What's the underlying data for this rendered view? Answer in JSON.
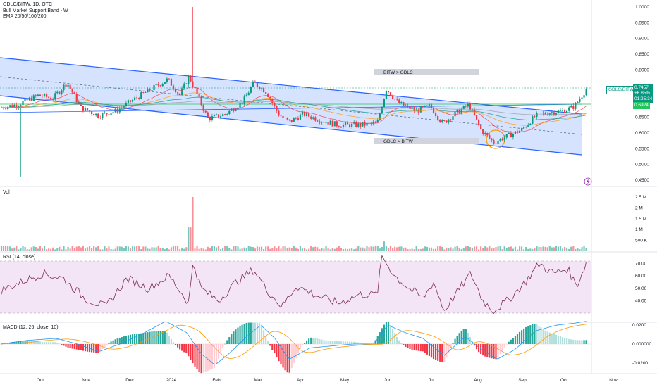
{
  "header": {
    "symbol": "GDLC/BITW, 1D, OTC",
    "indicator_1": "Bull Market Support Band - W",
    "indicator_2": "EMA 20/50/100/200"
  },
  "colors": {
    "up": "#089981",
    "down": "#f23645",
    "channel_fill": "#bfd4ff",
    "channel_line": "#2962ff",
    "rsi_line": "#7e2b59",
    "rsi_fill": "#f3e5f5",
    "macd_line": "#2196f3",
    "signal_line": "#ff9800"
  },
  "price_axis": {
    "ticks": [
      "1.0000",
      "0.9500",
      "0.9000",
      "0.8500",
      "0.8000",
      "0.7500",
      "0.7000",
      "0.6500",
      "0.6000",
      "0.5500",
      "0.5000",
      "0.4500"
    ]
  },
  "volume_axis": {
    "ticks": [
      "2.5 M",
      "2 M",
      "1.5 M",
      "1 M",
      "500 K"
    ]
  },
  "rsi_axis": {
    "ticks": [
      "70.00",
      "60.00",
      "50.00",
      "40.00"
    ]
  },
  "macd_axis": {
    "ticks": [
      "0.0200",
      "0.000000",
      "-0.0200"
    ]
  },
  "time_axis": {
    "labels": [
      "Oct",
      "Nov",
      "Dec",
      "2024",
      "Feb",
      "Mar",
      "Apr",
      "May",
      "Jun",
      "Jul",
      "Aug",
      "Sep",
      "Oct",
      "Nov"
    ]
  },
  "panes": {
    "volume": "Vol",
    "rsi": "RSI (14, close)",
    "macd": "MACD (12, 26, close, 10)"
  },
  "annotations": {
    "top_box": "BITW > GDLC",
    "bottom_box": "GDLC > BITW"
  },
  "last_price": {
    "symbol": "GDLC/BITW",
    "value": "0.7457",
    "change": "+6.85%",
    "countdown": "01:25:34",
    "level": "0.6924"
  },
  "chart_data": {
    "type": "candlestick",
    "title": "GDLC/BITW, 1D, OTC",
    "ylim": [
      0.45,
      1.0
    ],
    "key_points": [
      {
        "month": "Oct",
        "close": 0.685
      },
      {
        "month": "Nov",
        "close": 0.72
      },
      {
        "month": "Dec",
        "close": 0.7
      },
      {
        "month": "2024",
        "close": 0.76
      },
      {
        "month": "Feb",
        "close": 0.64
      },
      {
        "month": "Mar",
        "close": 0.72
      },
      {
        "month": "Apr",
        "close": 0.64
      },
      {
        "month": "May",
        "close": 0.62
      },
      {
        "month": "Jun",
        "close": 0.68
      },
      {
        "month": "Jul",
        "close": 0.65
      },
      {
        "month": "Aug",
        "close": 0.58
      },
      {
        "month": "Sep",
        "close": 0.64
      },
      {
        "month": "Oct",
        "close": 0.7457
      }
    ],
    "rsi_range": [
      30,
      75
    ],
    "volume_max": "2.5 M"
  }
}
